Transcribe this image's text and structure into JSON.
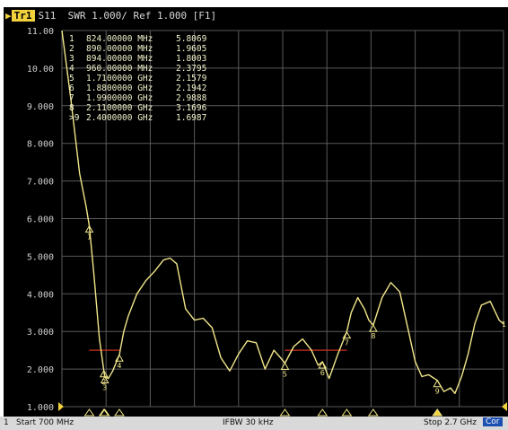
{
  "title_bar": {
    "trace_tag": "Tr1",
    "text": "S11  SWR 1.000/ Ref 1.000 [F1]"
  },
  "colors": {
    "trace": "#f2e68a",
    "grid": "#5a5a5a",
    "tag": "#f2d23c",
    "limit": "#cc3020"
  },
  "markers": [
    {
      "id": "1",
      "freq_text": "824.00000 MHz",
      "value_text": "5.8069",
      "freq_mhz": 824,
      "swr": 5.8069
    },
    {
      "id": "2",
      "freq_text": "890.00000 MHz",
      "value_text": "1.9605",
      "freq_mhz": 890,
      "swr": 1.9605
    },
    {
      "id": "3",
      "freq_text": "894.00000 MHz",
      "value_text": "1.8003",
      "freq_mhz": 894,
      "swr": 1.8003
    },
    {
      "id": "4",
      "freq_text": "960.00000 MHz",
      "value_text": "2.3795",
      "freq_mhz": 960,
      "swr": 2.3795
    },
    {
      "id": "5",
      "freq_text": "1.7100000 GHz",
      "value_text": "2.1579",
      "freq_mhz": 1710,
      "swr": 2.1579
    },
    {
      "id": "6",
      "freq_text": "1.8800000 GHz",
      "value_text": "2.1942",
      "freq_mhz": 1880,
      "swr": 2.1942
    },
    {
      "id": "7",
      "freq_text": "1.9900000 GHz",
      "value_text": "2.9888",
      "freq_mhz": 1990,
      "swr": 2.9888
    },
    {
      "id": "8",
      "freq_text": "2.1100000 GHz",
      "value_text": "3.1696",
      "freq_mhz": 2110,
      "swr": 3.1696
    },
    {
      "id": ">9",
      "freq_text": "2.4000000 GHz",
      "value_text": "1.6987",
      "freq_mhz": 2400,
      "swr": 1.6987
    }
  ],
  "status_bar": {
    "channel": "1",
    "start": "Start 700 MHz",
    "ifbw": "IFBW 30 kHz",
    "stop": "Stop 2.7 GHz",
    "cor": "Cor"
  },
  "chart_data": {
    "type": "line",
    "title": "S11  SWR 1.000/ Ref 1.000 [F1]",
    "xlabel": "",
    "ylabel": "",
    "xlim": [
      700,
      2700
    ],
    "ylim": [
      1.0,
      11.0
    ],
    "yticks": [
      1.0,
      2.0,
      3.0,
      4.0,
      5.0,
      6.0,
      7.0,
      8.0,
      9.0,
      10.0,
      11.0
    ],
    "ytick_labels": [
      "1.000",
      "2.000",
      "3.000",
      "4.000",
      "5.000",
      "6.000",
      "7.000",
      "8.000",
      "9.000",
      "10.00",
      "11.00"
    ],
    "grid": true,
    "series": [
      {
        "x": [
          700,
          740,
          780,
          810,
          824,
          845,
          870,
          890,
          894,
          910,
          930,
          960,
          980,
          1000,
          1040,
          1080,
          1120,
          1160,
          1190,
          1220,
          1260,
          1300,
          1340,
          1380,
          1420,
          1460,
          1500,
          1540,
          1580,
          1620,
          1660,
          1690,
          1710,
          1750,
          1790,
          1830,
          1860,
          1880,
          1910,
          1950,
          1990,
          2010,
          2040,
          2070,
          2090,
          2110,
          2150,
          2190,
          2230,
          2270,
          2300,
          2330,
          2360,
          2400,
          2430,
          2460,
          2480,
          2510,
          2540,
          2570,
          2600,
          2640,
          2680,
          2700
        ],
        "y": [
          11.0,
          9.2,
          7.2,
          6.3,
          5.8069,
          4.5,
          2.8,
          1.9605,
          1.8003,
          1.75,
          1.95,
          2.3795,
          3.0,
          3.4,
          4.0,
          4.35,
          4.6,
          4.9,
          4.95,
          4.8,
          3.6,
          3.3,
          3.35,
          3.1,
          2.3,
          1.95,
          2.4,
          2.75,
          2.7,
          2.0,
          2.5,
          2.3,
          2.1579,
          2.6,
          2.8,
          2.5,
          2.1,
          2.1942,
          1.75,
          2.4,
          2.9888,
          3.5,
          3.9,
          3.6,
          3.3,
          3.1696,
          3.9,
          4.3,
          4.05,
          3.0,
          2.2,
          1.8,
          1.85,
          1.6987,
          1.4,
          1.5,
          1.35,
          1.8,
          2.4,
          3.2,
          3.7,
          3.8,
          3.3,
          3.2
        ]
      }
    ],
    "limit_lines": [
      {
        "x": [
          824,
          960
        ],
        "y": 2.5
      },
      {
        "x": [
          1710,
          1990
        ],
        "y": 2.5
      }
    ]
  }
}
